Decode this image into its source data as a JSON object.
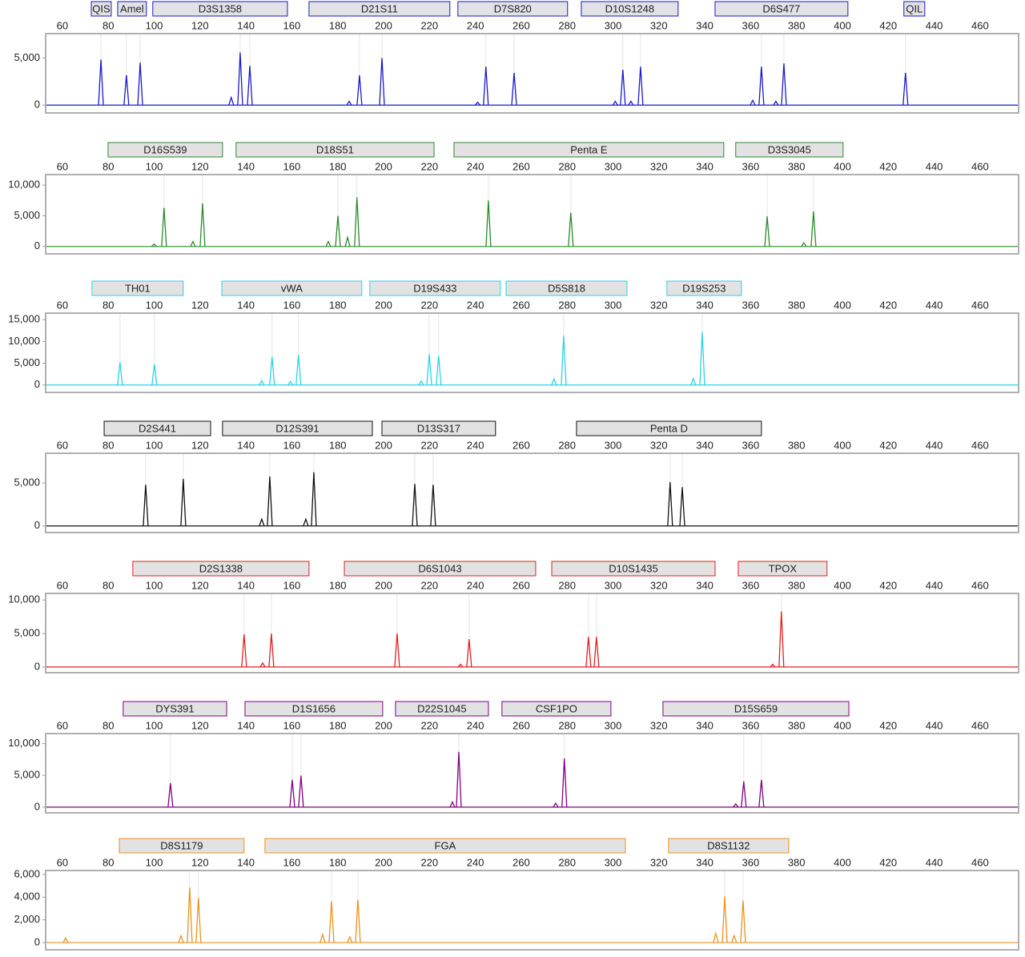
{
  "chart_data": [
    {
      "type": "line",
      "color": "#1a1acc",
      "xlim": [
        52.7,
        476.8
      ],
      "xticks": [
        60,
        80,
        100,
        120,
        140,
        160,
        180,
        200,
        220,
        240,
        260,
        280,
        300,
        320,
        340,
        360,
        380,
        400,
        420,
        440,
        460
      ],
      "ylim": [
        -830,
        7580
      ],
      "yticks": [
        0,
        {
          "value": 5000,
          "label": "5,000"
        }
      ],
      "markers": [
        {
          "label": "QIS",
          "start": 72.6,
          "end": 81.3
        },
        {
          "label": "Amel",
          "start": 84.1,
          "end": 96.6
        },
        {
          "label": "D3S1358",
          "start": 99.4,
          "end": 158.1
        },
        {
          "label": "D21S11",
          "start": 167.5,
          "end": 228.9
        },
        {
          "label": "D7S820",
          "start": 232.4,
          "end": 280.2
        },
        {
          "label": "D10S1248",
          "start": 286.2,
          "end": 328.4
        },
        {
          "label": "D6S477",
          "start": 344.5,
          "end": 402.4
        },
        {
          "label": "QIL",
          "start": 426.8,
          "end": 435.9
        }
      ],
      "x": [
        76.8,
        87.9,
        93.9,
        133.6,
        137.5,
        141.7,
        185,
        189.5,
        199.3,
        241,
        244.6,
        256.9,
        301,
        304.3,
        307.8,
        312,
        360.9,
        364.7,
        371,
        374.5,
        427.5
      ],
      "values": [
        4830,
        3170,
        4500,
        800,
        5580,
        4170,
        400,
        3170,
        5000,
        300,
        4080,
        3420,
        400,
        3750,
        400,
        4080,
        500,
        4080,
        400,
        4420,
        3420
      ]
    },
    {
      "type": "line",
      "color": "#2a8a2a",
      "xlim": [
        52.7,
        476.8
      ],
      "xticks": [
        60,
        80,
        100,
        120,
        140,
        160,
        180,
        200,
        220,
        240,
        260,
        280,
        300,
        320,
        340,
        360,
        380,
        400,
        420,
        440,
        460
      ],
      "ylim": [
        -1200,
        11700
      ],
      "yticks": [
        0,
        {
          "value": 5000,
          "label": "5,000"
        },
        {
          "value": 10000,
          "label": "10,000"
        }
      ],
      "markers": [
        {
          "label": "D16S539",
          "start": 79.9,
          "end": 129.8
        },
        {
          "label": "D18S51",
          "start": 135.7,
          "end": 222
        },
        {
          "label": "Penta E",
          "start": 230.7,
          "end": 348.3
        },
        {
          "label": "D3S3045",
          "start": 353.5,
          "end": 400.3
        }
      ],
      "x": [
        100,
        104.3,
        116.9,
        121.1,
        175.9,
        180.1,
        184.3,
        188.4,
        245.7,
        281.6,
        367.2,
        383.2,
        387.4
      ],
      "values": [
        400,
        6300,
        800,
        7000,
        800,
        5000,
        1500,
        8000,
        7500,
        5500,
        4900,
        600,
        5700
      ]
    },
    {
      "type": "line",
      "color": "#29d3e6",
      "xlim": [
        52.7,
        476.8
      ],
      "xticks": [
        60,
        80,
        100,
        120,
        140,
        160,
        180,
        200,
        220,
        240,
        260,
        280,
        300,
        320,
        340,
        360,
        380,
        400,
        420,
        440,
        460
      ],
      "ylim": [
        -1700,
        16500
      ],
      "yticks": [
        0,
        {
          "value": 5000,
          "label": "5,000"
        },
        {
          "value": 10000,
          "label": "10,000"
        },
        {
          "value": 15000,
          "label": "15,000"
        }
      ],
      "markers": [
        {
          "label": "TH01",
          "start": 72.9,
          "end": 112.7
        },
        {
          "label": "vWA",
          "start": 129.5,
          "end": 190.5
        },
        {
          "label": "D19S433",
          "start": 194,
          "end": 250.9
        },
        {
          "label": "D5S818",
          "start": 253.4,
          "end": 306.1
        },
        {
          "label": "D19S253",
          "start": 323.5,
          "end": 356
        }
      ],
      "x": [
        85.1,
        100.1,
        146.9,
        151.4,
        159.4,
        162.9,
        216.4,
        219.9,
        224,
        274.3,
        278.5,
        335,
        338.9
      ],
      "values": [
        5200,
        4800,
        1000,
        6500,
        800,
        6900,
        900,
        7000,
        6700,
        1400,
        11300,
        1500,
        12200
      ]
    },
    {
      "type": "line",
      "color": "#111111",
      "xlim": [
        52.7,
        476.8
      ],
      "xticks": [
        60,
        80,
        100,
        120,
        140,
        160,
        180,
        200,
        220,
        240,
        260,
        280,
        300,
        320,
        340,
        360,
        380,
        400,
        420,
        440,
        460
      ],
      "ylim": [
        -770,
        8460
      ],
      "yticks": [
        0,
        {
          "value": 5000,
          "label": "5,000"
        }
      ],
      "markers": [
        {
          "label": "D2S441",
          "start": 78.2,
          "end": 124.6
        },
        {
          "label": "D12S391",
          "start": 129.8,
          "end": 195.1
        },
        {
          "label": "D13S317",
          "start": 199.3,
          "end": 248.8
        },
        {
          "label": "Penta D",
          "start": 284.1,
          "end": 364.7
        }
      ],
      "x": [
        96.3,
        112.7,
        146.9,
        150.4,
        166.1,
        169.6,
        213.6,
        221.6,
        324.9,
        330.2
      ],
      "values": [
        4800,
        5480,
        800,
        5770,
        800,
        6250,
        4900,
        4800,
        5100,
        4520
      ]
    },
    {
      "type": "line",
      "color": "#e02020",
      "xlim": [
        52.7,
        476.8
      ],
      "xticks": [
        60,
        80,
        100,
        120,
        140,
        160,
        180,
        200,
        220,
        240,
        260,
        280,
        300,
        320,
        340,
        360,
        380,
        400,
        420,
        440,
        460
      ],
      "ylim": [
        -850,
        10975
      ],
      "yticks": [
        0,
        {
          "value": 5000,
          "label": "5,000"
        },
        {
          "value": 10000,
          "label": "10,000"
        }
      ],
      "markers": [
        {
          "label": "D2S1338",
          "start": 90.7,
          "end": 167.5
        },
        {
          "label": "D6S1043",
          "start": 182.9,
          "end": 266.3
        },
        {
          "label": "D10S1435",
          "start": 273.3,
          "end": 344.5
        },
        {
          "label": "TPOX",
          "start": 354.6,
          "end": 393.3
        }
      ],
      "x": [
        139.2,
        147.3,
        151.1,
        205.9,
        233.5,
        237.3,
        289.3,
        292.8,
        369.6,
        373.4
      ],
      "values": [
        4880,
        600,
        5000,
        5000,
        400,
        4150,
        4500,
        4500,
        400,
        8290
      ]
    },
    {
      "type": "line",
      "color": "#800080",
      "xlim": [
        52.7,
        476.8
      ],
      "xticks": [
        60,
        80,
        100,
        120,
        140,
        160,
        180,
        200,
        220,
        240,
        260,
        280,
        300,
        320,
        340,
        360,
        380,
        400,
        420,
        440,
        460
      ],
      "ylim": [
        -900,
        11560
      ],
      "yticks": [
        0,
        {
          "value": 5000,
          "label": "5,000"
        },
        {
          "value": 10000,
          "label": "10,000"
        }
      ],
      "markers": [
        {
          "label": "DYS391",
          "start": 86.5,
          "end": 131.6
        },
        {
          "label": "D1S1656",
          "start": 139.6,
          "end": 199.6
        },
        {
          "label": "D22S1045",
          "start": 205.2,
          "end": 245.7
        },
        {
          "label": "CSF1PO",
          "start": 251.6,
          "end": 299.1
        },
        {
          "label": "D15S659",
          "start": 321.8,
          "end": 402.8
        }
      ],
      "x": [
        107.1,
        160.2,
        164,
        230,
        232.8,
        275,
        278.8,
        353.5,
        357,
        364.7
      ],
      "values": [
        3770,
        4290,
        4940,
        800,
        8700,
        600,
        7660,
        500,
        4030,
        4290
      ]
    },
    {
      "type": "line",
      "color": "#f0901c",
      "xlim": [
        52.7,
        476.8
      ],
      "xticks": [
        60,
        80,
        100,
        120,
        140,
        160,
        180,
        200,
        220,
        240,
        260,
        280,
        300,
        320,
        340,
        360,
        380,
        400,
        420,
        440,
        460
      ],
      "ylim": [
        -640,
        6350
      ],
      "yticks": [
        0,
        {
          "value": 2000,
          "label": "2,000"
        },
        {
          "value": 4000,
          "label": "4,000"
        },
        {
          "value": 6000,
          "label": "6,000"
        }
      ],
      "markers": [
        {
          "label": "D8S1179",
          "start": 84.8,
          "end": 139.2
        },
        {
          "label": "FGA",
          "start": 148.3,
          "end": 305.4
        },
        {
          "label": "D8S1132",
          "start": 324.2,
          "end": 376.6
        }
      ],
      "x": [
        61.4,
        111.7,
        115.5,
        119.3,
        173.4,
        177.3,
        185.3,
        188.8,
        344.8,
        348.7,
        352.8,
        356.7
      ],
      "values": [
        400,
        600,
        4860,
        3930,
        700,
        3640,
        500,
        3790,
        800,
        4070,
        600,
        3710
      ]
    }
  ]
}
